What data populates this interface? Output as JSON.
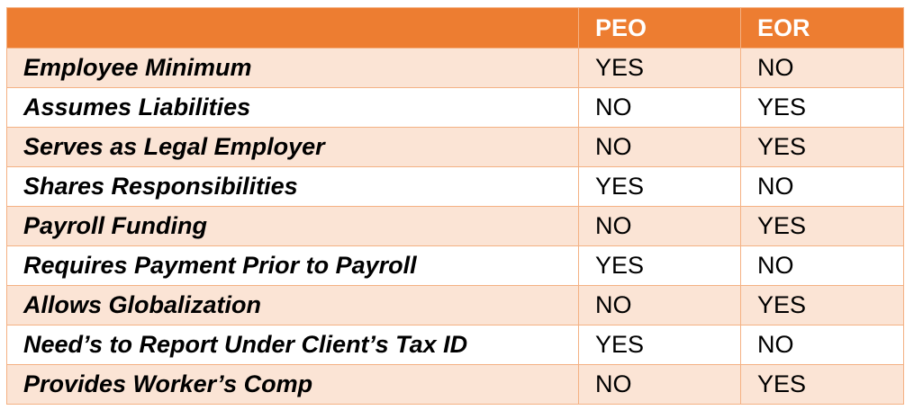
{
  "table": {
    "header": {
      "feature": "",
      "peo": "PEO",
      "eor": "EOR"
    },
    "rows": [
      {
        "feature": "Employee Minimum",
        "peo": "YES",
        "eor": "NO"
      },
      {
        "feature": "Assumes Liabilities",
        "peo": "NO",
        "eor": "YES"
      },
      {
        "feature": "Serves as Legal Employer",
        "peo": "NO",
        "eor": "YES"
      },
      {
        "feature": "Shares Responsibilities",
        "peo": "YES",
        "eor": "NO"
      },
      {
        "feature": "Payroll Funding",
        "peo": "NO",
        "eor": "YES"
      },
      {
        "feature": "Requires Payment Prior to Payroll",
        "peo": "YES",
        "eor": "NO"
      },
      {
        "feature": "Allows Globalization",
        "peo": "NO",
        "eor": "YES"
      },
      {
        "feature": "Need’s to Report Under Client’s Tax ID",
        "peo": "YES",
        "eor": "NO"
      },
      {
        "feature": "Provides Worker’s Comp",
        "peo": "NO",
        "eor": "YES"
      }
    ]
  },
  "colors": {
    "header_bg": "#ed7d31",
    "header_text": "#ffffff",
    "band_row_bg": "#fbe4d5",
    "plain_row_bg": "#ffffff",
    "border": "#f4b183"
  }
}
